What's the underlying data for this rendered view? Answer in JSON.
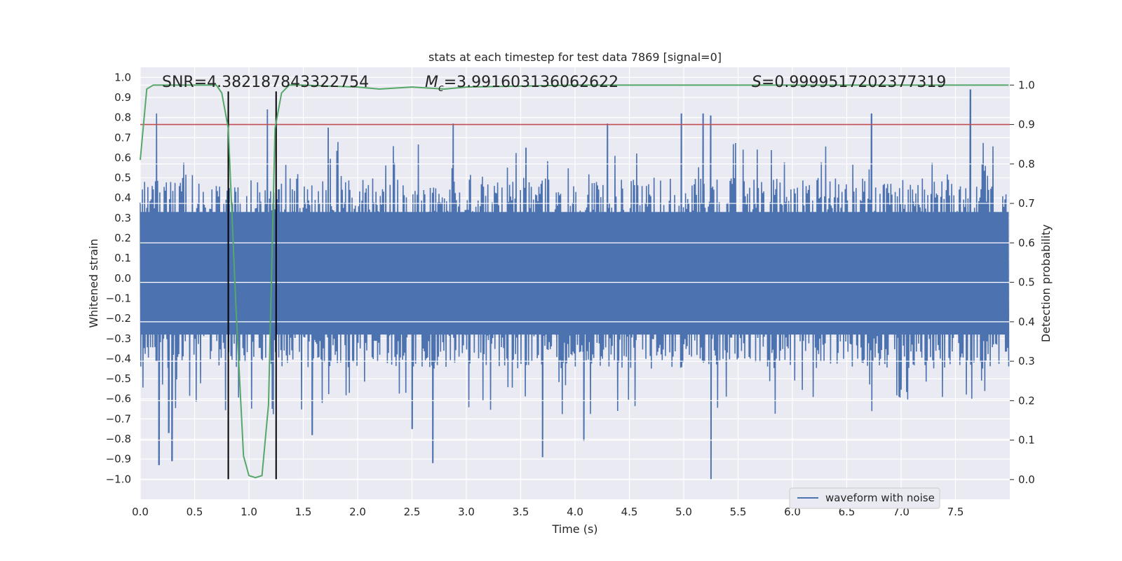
{
  "chart_data": {
    "type": "line",
    "title": "stats at each timestep for test data 7869 [signal=0]",
    "xlabel": "Time (s)",
    "ylabel": "Whitened strain",
    "y2label": "Detection probability",
    "xlim": [
      0.0,
      8.0
    ],
    "ylim": [
      -1.1,
      1.05
    ],
    "y2lim": [
      -0.05,
      1.045
    ],
    "xticks": [
      "0.0",
      "0.5",
      "1.0",
      "1.5",
      "2.0",
      "2.5",
      "3.0",
      "3.5",
      "4.0",
      "4.5",
      "5.0",
      "5.5",
      "6.0",
      "6.5",
      "7.0",
      "7.5"
    ],
    "yticks": [
      "1.0",
      "0.9",
      "0.8",
      "0.7",
      "0.6",
      "0.5",
      "0.4",
      "0.3",
      "0.2",
      "0.1",
      "0.0",
      "−0.1",
      "−0.2",
      "−0.3",
      "−0.4",
      "−0.5",
      "−0.6",
      "−0.7",
      "−0.8",
      "−0.9",
      "−1.0"
    ],
    "y2ticks": [
      "1.0",
      "0.9",
      "0.8",
      "0.7",
      "0.6",
      "0.5",
      "0.4",
      "0.3",
      "0.2",
      "0.1",
      "0.0"
    ],
    "annotations": {
      "snr": "SNR=4.382187843322754",
      "mc_symbol": "M",
      "mc_sub": "c",
      "mc_value": "=3.991603136062622",
      "s_symbol": "S",
      "s_value": "=0.9999517202377319"
    },
    "legend": {
      "label": "waveform with noise",
      "location": "lower-right"
    },
    "series": [
      {
        "name": "waveform with noise",
        "axis": "left",
        "color": "#4c72b0",
        "x_range": [
          0.0,
          7.99
        ],
        "typical_envelope": [
          -0.45,
          0.5
        ],
        "peaks": [
          {
            "x": 0.15,
            "y": 0.82
          },
          {
            "x": 0.17,
            "y": -0.93
          },
          {
            "x": 0.29,
            "y": -0.91
          },
          {
            "x": 0.26,
            "y": -0.77
          },
          {
            "x": 1.17,
            "y": 0.84
          },
          {
            "x": 1.73,
            "y": 0.75
          },
          {
            "x": 2.69,
            "y": -0.92
          },
          {
            "x": 2.88,
            "y": 0.77
          },
          {
            "x": 3.7,
            "y": -0.89
          },
          {
            "x": 4.3,
            "y": 0.77
          },
          {
            "x": 4.98,
            "y": 0.82
          },
          {
            "x": 5.18,
            "y": 0.82
          },
          {
            "x": 5.25,
            "y": 0.81
          },
          {
            "x": 5.25,
            "y": -1.0
          },
          {
            "x": 6.73,
            "y": 0.82
          },
          {
            "x": 7.64,
            "y": 0.94
          },
          {
            "x": 4.08,
            "y": -0.81
          },
          {
            "x": 3.55,
            "y": 0.65
          },
          {
            "x": 1.58,
            "y": -0.78
          },
          {
            "x": 2.5,
            "y": -0.75
          }
        ]
      },
      {
        "name": "detection probability",
        "axis": "right",
        "color": "#55a868",
        "x": [
          0.0,
          0.06,
          0.12,
          0.3,
          0.5,
          0.7,
          0.75,
          0.81,
          0.88,
          0.95,
          1.0,
          1.06,
          1.12,
          1.18,
          1.24,
          1.3,
          1.37,
          1.5,
          2.0,
          2.2,
          2.5,
          2.8,
          3.0,
          4.0,
          5.0,
          6.0,
          7.0,
          7.99
        ],
        "values": [
          0.81,
          0.99,
          1.0,
          1.0,
          1.0,
          1.0,
          0.98,
          0.89,
          0.44,
          0.06,
          0.01,
          0.005,
          0.01,
          0.19,
          0.89,
          0.98,
          1.0,
          1.0,
          0.995,
          0.99,
          0.995,
          0.99,
          0.995,
          1.0,
          1.0,
          1.0,
          1.0,
          1.0
        ]
      }
    ],
    "threshold": {
      "name": "threshold",
      "axis": "right",
      "value": 0.9,
      "color": "#c44e52"
    },
    "vlines": {
      "color": "#000000",
      "x": [
        0.81,
        1.25
      ],
      "y_range": [
        -1.0,
        0.93
      ]
    }
  }
}
